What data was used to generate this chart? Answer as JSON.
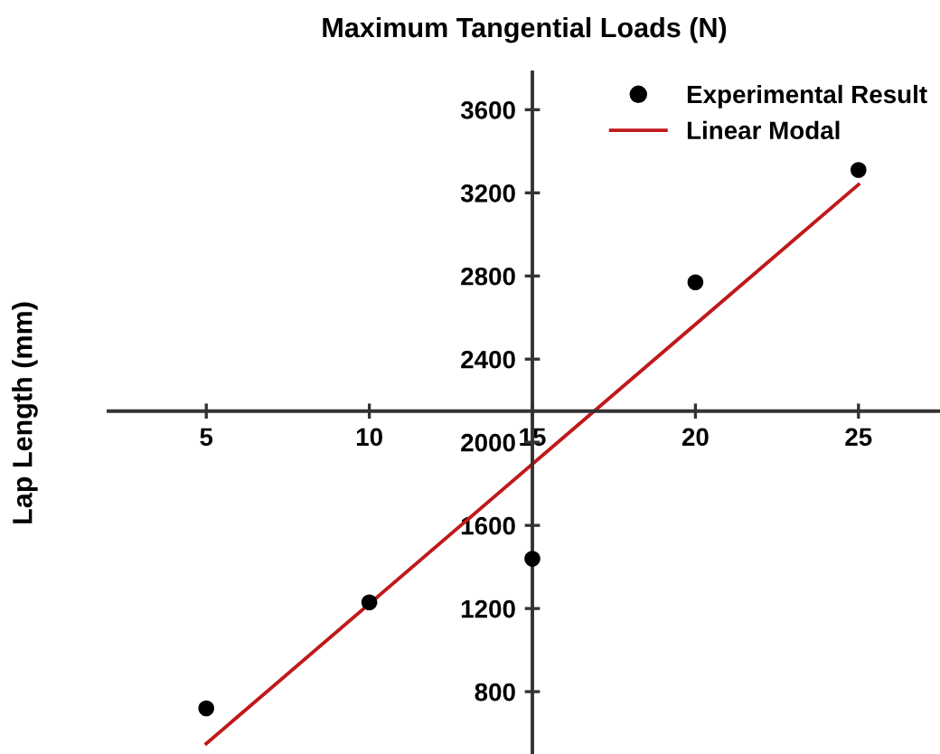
{
  "chart_data": {
    "type": "scatter",
    "title": "Maximum Tangential Loads (N)",
    "ylabel": "Lap Length (mm)",
    "series": [
      {
        "name": "Experimental Result",
        "color": "#000000",
        "marker": "circle",
        "x": [
          5,
          10,
          15,
          20,
          25
        ],
        "values": [
          720,
          1230,
          1440,
          2770,
          3310
        ]
      },
      {
        "name": "Linear Modal",
        "type": "line",
        "color": "#c0191b",
        "line_style": "solid",
        "marker": "none",
        "x": [
          5,
          25
        ],
        "values": [
          550,
          3240
        ]
      }
    ],
    "xlim": [
      2,
      27.5
    ],
    "ylim": [
      500,
      3780
    ],
    "xticks": [
      5,
      10,
      15,
      20,
      25
    ],
    "yticks": [
      800,
      1200,
      1600,
      2000,
      2400,
      2800,
      3200,
      3600
    ],
    "grid": false,
    "legend": "top right"
  }
}
